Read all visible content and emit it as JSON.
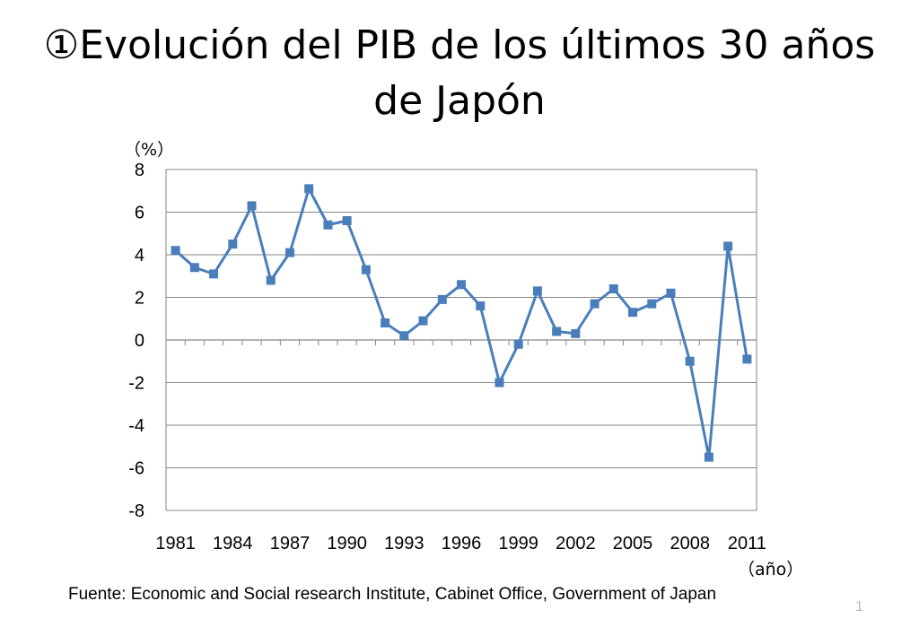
{
  "slide": {
    "title": "①Evolución del PIB de los últimos 30 años de Japón",
    "source": "Fuente: Economic and Social research Institute, Cabinet Office, Government of Japan",
    "page_number": "1"
  },
  "chart_data": {
    "type": "line",
    "title": "",
    "ylabel": "（%）",
    "xlabel": "（año）",
    "ylim": [
      -8,
      8
    ],
    "yticks": [
      8,
      6,
      4,
      2,
      0,
      -2,
      -4,
      -6,
      -8
    ],
    "xtick_labels": [
      "1981",
      "1984",
      "1987",
      "1990",
      "1993",
      "1996",
      "1999",
      "2002",
      "2005",
      "2008",
      "2011"
    ],
    "grid": true,
    "series": [
      {
        "color": "#4a7ebb",
        "marker": "square",
        "x": [
          1981,
          1982,
          1983,
          1984,
          1985,
          1986,
          1987,
          1988,
          1989,
          1990,
          1991,
          1992,
          1993,
          1994,
          1995,
          1996,
          1997,
          1998,
          1999,
          2000,
          2001,
          2002,
          2003,
          2004,
          2005,
          2006,
          2007,
          2008,
          2009,
          2010,
          2011
        ],
        "values": [
          4.2,
          3.4,
          3.1,
          4.5,
          6.3,
          2.8,
          4.1,
          7.1,
          5.4,
          5.6,
          3.3,
          0.8,
          0.2,
          0.9,
          1.9,
          2.6,
          1.6,
          -2.0,
          -0.2,
          2.3,
          0.4,
          0.3,
          1.7,
          2.4,
          1.3,
          1.7,
          2.2,
          -1.0,
          -5.5,
          4.4,
          -0.9
        ]
      }
    ]
  }
}
